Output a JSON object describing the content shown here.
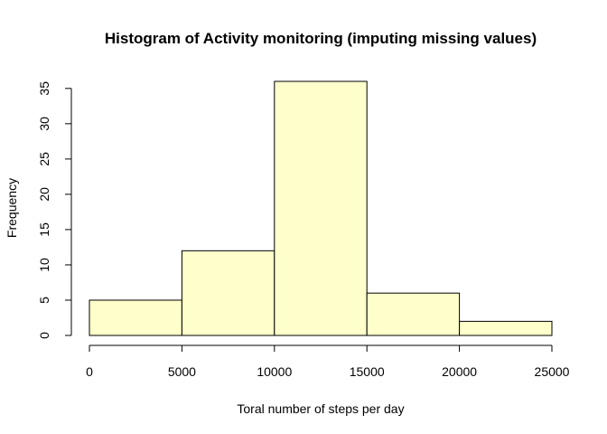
{
  "chart_data": {
    "type": "bar",
    "title": "Histogram of Activity monitoring (imputing missing values)",
    "xlabel": "Toral number of steps per day",
    "ylabel": "Frequency",
    "bins": [
      {
        "from": 0,
        "to": 5000,
        "count": 5
      },
      {
        "from": 5000,
        "to": 10000,
        "count": 12
      },
      {
        "from": 10000,
        "to": 15000,
        "count": 36
      },
      {
        "from": 15000,
        "to": 20000,
        "count": 6
      },
      {
        "from": 20000,
        "to": 25000,
        "count": 2
      }
    ],
    "xlim": [
      0,
      25000
    ],
    "ylim": [
      0,
      36
    ],
    "x_ticks": [
      0,
      5000,
      10000,
      15000,
      20000,
      25000
    ],
    "y_ticks": [
      0,
      5,
      10,
      15,
      20,
      25,
      30,
      35
    ],
    "bar_color": "#FFFFCC",
    "grid": false,
    "legend": "none"
  }
}
